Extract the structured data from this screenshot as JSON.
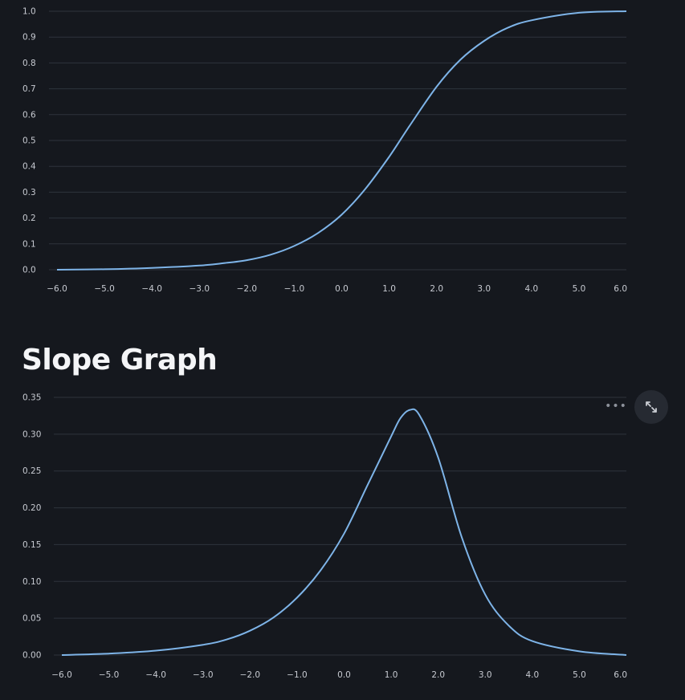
{
  "header": {
    "slope_title": "Slope Graph"
  },
  "colors": {
    "background": "#15181e",
    "line": "#7eb4e8",
    "grid": "#2e333c"
  },
  "toolbar": {
    "more_icon": "more-horizontal-icon",
    "fullscreen_icon": "expand-icon"
  },
  "chart_data": [
    {
      "type": "line",
      "title": "",
      "xlabel": "",
      "ylabel": "",
      "xlim": [
        -6.0,
        6.0
      ],
      "ylim": [
        0.0,
        1.0
      ],
      "grid": true,
      "x_ticks": [
        "−6.0",
        "−5.0",
        "−4.0",
        "−3.0",
        "−2.0",
        "−1.0",
        "0.0",
        "1.0",
        "2.0",
        "3.0",
        "4.0",
        "5.0",
        "6.0"
      ],
      "y_ticks": [
        "0.0",
        "0.1",
        "0.2",
        "0.3",
        "0.4",
        "0.5",
        "0.6",
        "0.7",
        "0.8",
        "0.9",
        "1.0"
      ],
      "series": [
        {
          "x": [
            -6.0,
            -5.0,
            -4.0,
            -3.0,
            -2.5,
            -2.0,
            -1.5,
            -1.0,
            -0.5,
            0.0,
            0.5,
            1.0,
            1.4,
            2.0,
            2.5,
            3.0,
            3.5,
            4.0,
            5.0,
            6.0
          ],
          "y": [
            0.0,
            0.002,
            0.007,
            0.016,
            0.025,
            0.037,
            0.058,
            0.092,
            0.142,
            0.213,
            0.313,
            0.437,
            0.548,
            0.708,
            0.812,
            0.885,
            0.936,
            0.965,
            0.994,
            1.0
          ]
        }
      ]
    },
    {
      "type": "line",
      "title": "",
      "xlabel": "",
      "ylabel": "",
      "xlim": [
        -6.0,
        6.0
      ],
      "ylim": [
        0.0,
        0.35
      ],
      "grid": true,
      "x_ticks": [
        "−6.0",
        "−5.0",
        "−4.0",
        "−3.0",
        "−2.0",
        "−1.0",
        "0.0",
        "1.0",
        "2.0",
        "3.0",
        "4.0",
        "5.0",
        "6.0"
      ],
      "y_ticks": [
        "0.00",
        "0.05",
        "0.10",
        "0.15",
        "0.20",
        "0.25",
        "0.30",
        "0.35"
      ],
      "series": [
        {
          "x": [
            -6.0,
            -5.0,
            -4.0,
            -3.0,
            -2.5,
            -2.0,
            -1.5,
            -1.0,
            -0.5,
            0.0,
            0.5,
            1.0,
            1.2,
            1.4,
            1.6,
            2.0,
            2.5,
            3.0,
            3.5,
            4.0,
            5.0,
            6.0
          ],
          "y": [
            0.0,
            0.002,
            0.006,
            0.014,
            0.021,
            0.033,
            0.051,
            0.078,
            0.115,
            0.165,
            0.231,
            0.297,
            0.322,
            0.333,
            0.326,
            0.268,
            0.16,
            0.082,
            0.04,
            0.019,
            0.005,
            0.0
          ]
        }
      ]
    }
  ]
}
